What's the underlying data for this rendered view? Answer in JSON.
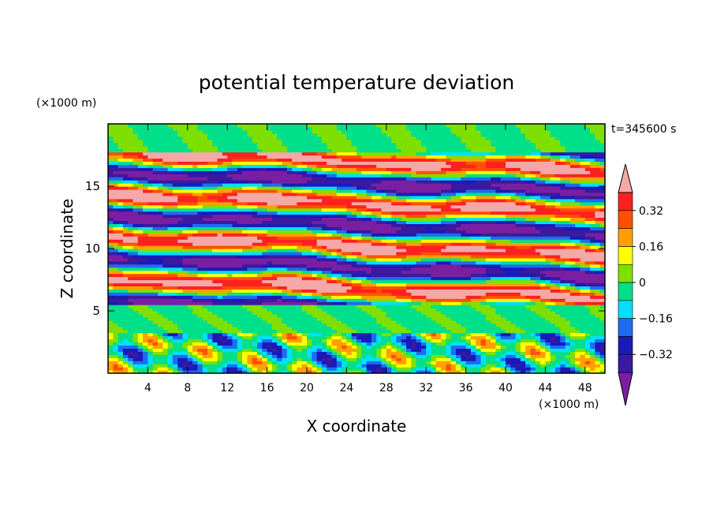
{
  "chart_data": {
    "type": "heatmap",
    "title": "potential temperature deviation",
    "xlabel": "X coordinate",
    "ylabel": "Z coordinate",
    "x_unit": "(×1000 m)",
    "y_unit": "(×1000 m)",
    "time_label": "t=345600 s",
    "xlim": [
      0,
      50
    ],
    "ylim": [
      0,
      20
    ],
    "x_ticks": [
      4,
      8,
      12,
      16,
      20,
      24,
      28,
      32,
      36,
      40,
      44,
      48
    ],
    "y_ticks": [
      5,
      10,
      15
    ],
    "colorbar": {
      "levels": [
        -0.4,
        -0.32,
        -0.24,
        -0.16,
        -0.08,
        0,
        0.08,
        0.16,
        0.24,
        0.32,
        0.4
      ],
      "tick_labels": [
        "0.32",
        "0.16",
        "0",
        "−0.16",
        "−0.32"
      ],
      "tick_values": [
        0.32,
        0.16,
        0,
        -0.16,
        -0.32
      ],
      "colors": [
        "#7b1fa2",
        "#3a1aa0",
        "#1a1ab8",
        "#1e6cf0",
        "#00e0ff",
        "#00e08a",
        "#7fe000",
        "#ffff00",
        "#ffa000",
        "#ff5000",
        "#ff2020",
        "#f4a8a8"
      ],
      "extend": "both"
    }
  }
}
